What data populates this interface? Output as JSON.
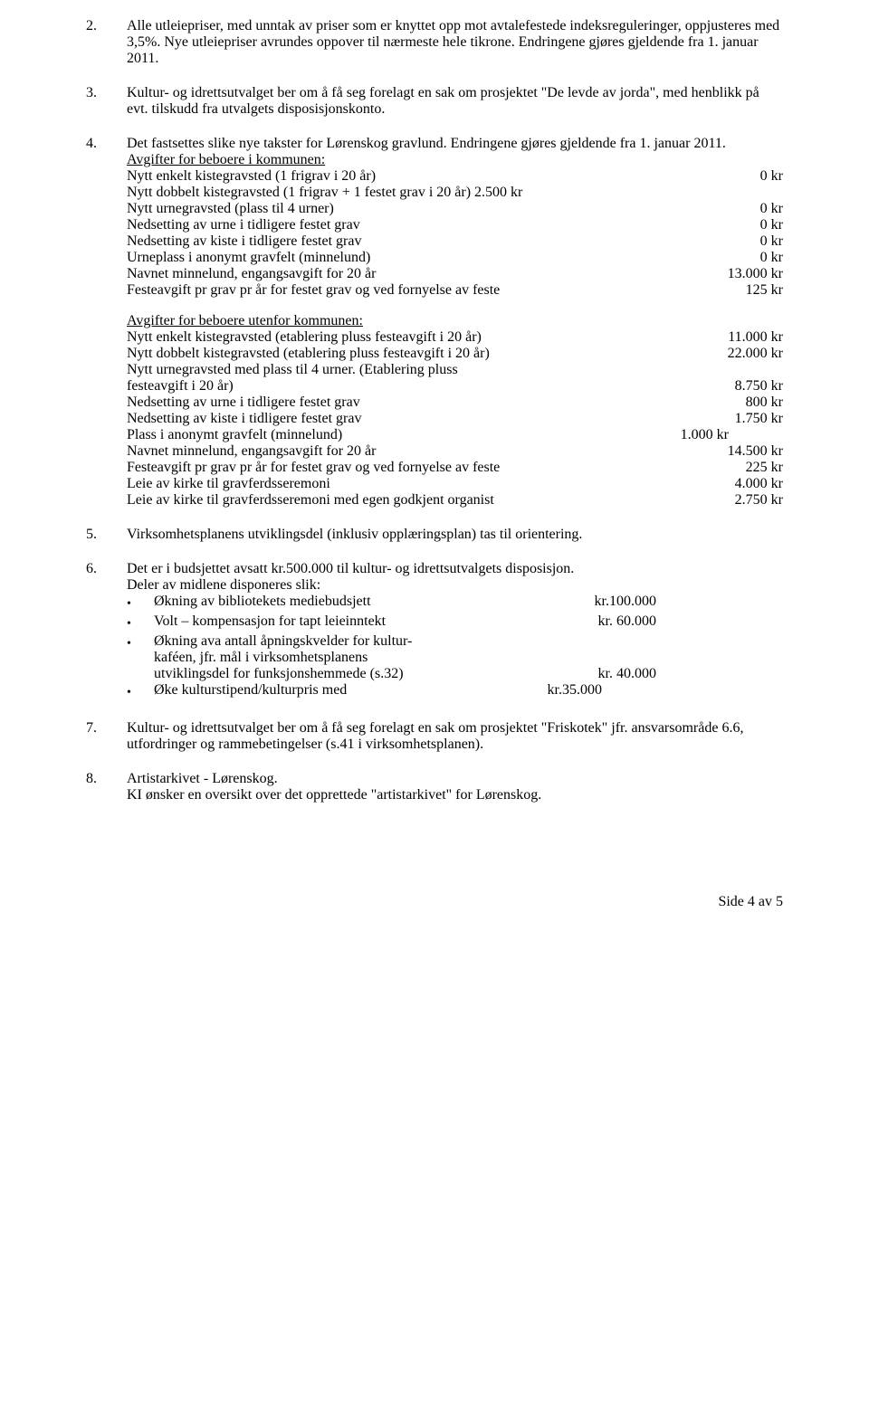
{
  "items": {
    "i2": {
      "num": "2.",
      "text": "Alle utleiepriser, med unntak av priser som er knyttet opp mot avtalefestede indeksreguleringer, oppjusteres med 3,5%. Nye utleiepriser avrundes oppover til nærmeste hele tikrone. Endringene gjøres gjeldende fra 1. januar 2011."
    },
    "i3": {
      "num": "3.",
      "text": "Kultur- og idrettsutvalget ber om å få seg forelagt en sak om prosjektet \"De levde av jorda\", med henblikk på evt. tilskudd fra utvalgets disposisjonskonto."
    },
    "i4": {
      "num": "4.",
      "intro": "Det fastsettes slike nye takster for Lørenskog gravlund. Endringene gjøres gjeldende fra 1. januar 2011.",
      "sub1_title": "Avgifter for beboere i kommunen:",
      "sub1_rows": [
        {
          "label": "Nytt enkelt kistegravsted (1 frigrav i 20 år)",
          "val": "0 kr"
        },
        {
          "label": "Nytt dobbelt kistegravsted (1 frigrav + 1 festet grav i 20 år) 2.500 kr",
          "val": ""
        },
        {
          "label": "Nytt urnegravsted (plass til 4 urner)",
          "val": "0 kr"
        },
        {
          "label": "Nedsetting av urne i tidligere festet grav",
          "val": "0 kr"
        },
        {
          "label": "Nedsetting av kiste i tidligere festet grav",
          "val": "0 kr"
        },
        {
          "label": "Urneplass i anonymt gravfelt (minnelund)",
          "val": "0 kr"
        },
        {
          "label": "Navnet minnelund, engangsavgift for 20 år",
          "val": "13.000 kr"
        },
        {
          "label": "Festeavgift pr grav pr år for festet grav og ved fornyelse av feste",
          "val": "125 kr"
        }
      ],
      "sub2_title": "Avgifter for beboere utenfor kommunen:",
      "sub2_rows": [
        {
          "label": "Nytt enkelt kistegravsted (etablering pluss festeavgift i 20 år)",
          "val": "11.000 kr"
        },
        {
          "label": "Nytt dobbelt kistegravsted (etablering pluss festeavgift i 20 år)",
          "val": "22.000 kr"
        },
        {
          "label": "Nytt urnegravsted med plass til 4 urner. (Etablering pluss",
          "val": ""
        },
        {
          "label": "festeavgift i 20 år)",
          "val": "8.750 kr"
        },
        {
          "label": "Nedsetting av urne i tidligere festet grav",
          "val": "800 kr"
        },
        {
          "label": "Nedsetting av kiste i tidligere festet grav",
          "val": "1.750 kr"
        },
        {
          "label": "Plass i anonymt gravfelt (minnelund)",
          "val": "1.000 kr",
          "mid": true
        },
        {
          "label": "Navnet minnelund, engangsavgift for 20 år",
          "val": "14.500 kr"
        },
        {
          "label": "Festeavgift pr grav pr år for festet grav og ved fornyelse av feste",
          "val": "225 kr"
        },
        {
          "label": "Leie av kirke til gravferdsseremoni",
          "val": "4.000 kr"
        },
        {
          "label": "Leie av kirke til gravferdsseremoni med egen godkjent organist",
          "val": "2.750 kr"
        }
      ]
    },
    "i5": {
      "num": "5.",
      "text": "Virksomhetsplanens utviklingsdel (inklusiv opplæringsplan) tas til orientering."
    },
    "i6": {
      "num": "6.",
      "intro1": "Det er i budsjettet avsatt kr.500.000 til kultur- og idrettsutvalgets disposisjon.",
      "intro2": "Deler av midlene disponeres slik:",
      "bullets": [
        {
          "label": "Økning av bibliotekets mediebudsjett",
          "val": "kr.100.000",
          "cls": "bl-val"
        },
        {
          "label": "Volt – kompensasjon for tapt leieinntekt",
          "val": "kr.  60.000",
          "cls": "bl-val"
        },
        {
          "lines": [
            "Økning ava antall åpningskvelder for kultur-",
            "kaféen, jfr. mål i virksomhetsplanens"
          ],
          "last_label": "utviklingsdel for funksjonshemmede (s.32)",
          "val": "kr.  40.000",
          "cls": "bl-val"
        },
        {
          "label": "Øke kulturstipend/kulturpris med",
          "val": "kr.35.000",
          "cls": "bl-val2"
        }
      ]
    },
    "i7": {
      "num": "7.",
      "text": "Kultur- og idrettsutvalget ber om å få seg forelagt en sak om prosjektet \"Friskotek\" jfr. ansvarsområde 6.6, utfordringer og rammebetingelser (s.41 i virksomhetsplanen)."
    },
    "i8": {
      "num": "8.",
      "line1": "Artistarkivet  - Lørenskog.",
      "line2": "KI ønsker en oversikt over det opprettede \"artistarkivet\" for Lørenskog."
    }
  },
  "footer": "Side 4 av 5"
}
